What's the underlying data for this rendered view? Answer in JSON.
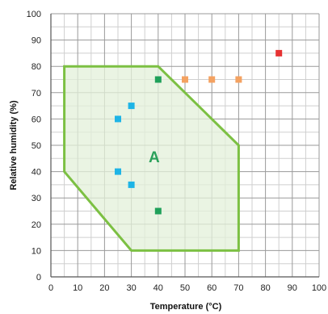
{
  "chart_data": {
    "type": "scatter",
    "xlabel": "Temperature (°C)",
    "ylabel": "Relative humidity (%)",
    "xlim": [
      0,
      100
    ],
    "ylim": [
      0,
      100
    ],
    "x_ticks": [
      0,
      10,
      20,
      30,
      40,
      50,
      60,
      70,
      80,
      90,
      100
    ],
    "y_ticks": [
      0,
      10,
      20,
      30,
      40,
      50,
      60,
      70,
      80,
      90,
      100
    ],
    "grid": "major every 10, minor every 5",
    "region": {
      "label": "A",
      "color": "#7cc043",
      "fill": "#e3f0d9",
      "vertices": [
        [
          5,
          80
        ],
        [
          40,
          80
        ],
        [
          70,
          50
        ],
        [
          70,
          10
        ],
        [
          30,
          10
        ],
        [
          5,
          40
        ]
      ]
    },
    "points": [
      {
        "x": 40,
        "y": 75,
        "color": "#1fa05a"
      },
      {
        "x": 40,
        "y": 25,
        "color": "#1fa05a"
      },
      {
        "x": 30,
        "y": 65,
        "color": "#1eb4e6"
      },
      {
        "x": 25,
        "y": 60,
        "color": "#1eb4e6"
      },
      {
        "x": 25,
        "y": 40,
        "color": "#1eb4e6"
      },
      {
        "x": 30,
        "y": 35,
        "color": "#1eb4e6"
      },
      {
        "x": 50,
        "y": 75,
        "color": "#f4a261"
      },
      {
        "x": 60,
        "y": 75,
        "color": "#f4a261"
      },
      {
        "x": 70,
        "y": 75,
        "color": "#f4a261"
      },
      {
        "x": 85,
        "y": 85,
        "color": "#e63232"
      }
    ]
  }
}
